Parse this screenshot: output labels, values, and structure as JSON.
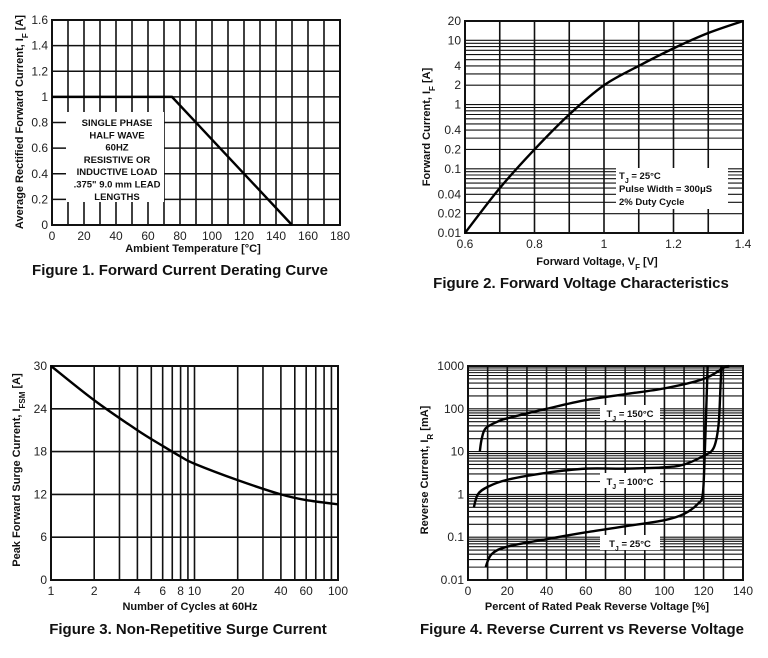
{
  "chart_data": [
    {
      "type": "line",
      "title": "Figure 1. Forward Current Derating Curve",
      "xlabel": [
        "Ambient Temperature [°C]"
      ],
      "ylabel": [
        "Average Rectified Forward Current, I",
        "F",
        " [A]"
      ],
      "xlim": [
        0,
        180
      ],
      "ylim": [
        0,
        1.6
      ],
      "xscale": "linear",
      "yscale": "linear",
      "xticks": [
        0,
        20,
        40,
        60,
        80,
        100,
        120,
        140,
        160,
        180
      ],
      "yticks": [
        0,
        0.2,
        0.4,
        0.6,
        0.8,
        1,
        1.2,
        1.4,
        1.6
      ],
      "grid": true,
      "series": [
        {
          "x": [
            0,
            75,
            150
          ],
          "y": [
            1,
            1,
            0
          ]
        }
      ],
      "annotation": [
        "SINGLE PHASE",
        "HALF WAVE",
        "60HZ",
        "RESISTIVE OR",
        "INDUCTIVE LOAD",
        ".375\" 9.0 mm LEAD",
        "LENGTHS"
      ]
    },
    {
      "type": "line",
      "title": "Figure 2. Forward Voltage Characteristics",
      "xlabel": [
        "Forward Voltage, V",
        "F",
        " [V]"
      ],
      "ylabel": [
        "Forward Current, I",
        "F",
        " [A]"
      ],
      "xlim": [
        0.6,
        1.4
      ],
      "ylim": [
        0.01,
        20
      ],
      "xscale": "linear",
      "yscale": "log",
      "xticks": [
        0.6,
        0.8,
        1,
        1.2,
        1.4
      ],
      "yticks": [
        0.01,
        0.02,
        0.04,
        0.1,
        0.2,
        0.4,
        1,
        2,
        4,
        10,
        20
      ],
      "grid": true,
      "series": [
        {
          "x": [
            0.6,
            0.7,
            0.8,
            0.9,
            1.0,
            1.1,
            1.2,
            1.3,
            1.4
          ],
          "y": [
            0.01,
            0.05,
            0.2,
            0.7,
            2,
            4,
            7.5,
            13,
            20
          ]
        }
      ],
      "annotation": [
        [
          "T",
          "J",
          " = 25°C"
        ],
        [
          "Pulse Width = 300μS"
        ],
        [
          "2% Duty Cycle"
        ]
      ]
    },
    {
      "type": "line",
      "title": "Figure 3. Non-Repetitive Surge Current",
      "xlabel": [
        "Number of Cycles at 60Hz"
      ],
      "ylabel": [
        "Peak Forward Surge Current, I",
        "FSM",
        " [A]"
      ],
      "xlim": [
        1,
        100
      ],
      "ylim": [
        0,
        30
      ],
      "xscale": "log",
      "yscale": "linear",
      "xticks": [
        1,
        2,
        4,
        6,
        8,
        10,
        20,
        40,
        60,
        100
      ],
      "yticks": [
        0,
        6,
        12,
        18,
        24,
        30
      ],
      "grid": true,
      "series": [
        {
          "x": [
            1,
            2,
            4,
            6,
            8,
            10,
            20,
            40,
            60,
            100
          ],
          "y": [
            30,
            25.2,
            21,
            18.8,
            17.3,
            16.3,
            14,
            12,
            11.2,
            10.6
          ]
        }
      ]
    },
    {
      "type": "line",
      "title": "Figure 4. Reverse Current vs Reverse Voltage",
      "xlabel": [
        "Percent of Rated Peak Reverse Voltage [%]"
      ],
      "ylabel": [
        "Reverse Current, I",
        "R",
        " [mA]"
      ],
      "xlim": [
        0,
        140
      ],
      "ylim": [
        0.01,
        1000
      ],
      "xscale": "linear",
      "yscale": "log",
      "xticks": [
        0,
        20,
        40,
        60,
        80,
        100,
        120,
        140
      ],
      "yticks": [
        0.01,
        0.1,
        1,
        10,
        100,
        1000
      ],
      "grid": true,
      "series": [
        {
          "name": [
            "T",
            "J",
            " = 150°C"
          ],
          "x": [
            6,
            7,
            9,
            15,
            20,
            40,
            60,
            80,
            100,
            120,
            130,
            133
          ],
          "y": [
            10,
            20,
            35,
            50,
            60,
            100,
            160,
            220,
            300,
            500,
            900,
            1000
          ]
        },
        {
          "name": [
            "T",
            "J",
            " = 100°C"
          ],
          "x": [
            3,
            5,
            10,
            20,
            40,
            60,
            80,
            100,
            110,
            120,
            125,
            127.5,
            128.5,
            129
          ],
          "y": [
            0.5,
            1,
            1.5,
            2.2,
            3.2,
            4,
            4,
            4.3,
            5,
            8,
            12,
            40,
            300,
            1000
          ]
        },
        {
          "name": [
            "T",
            "J",
            " = 25°C"
          ],
          "x": [
            9,
            12,
            20,
            40,
            60,
            80,
            100,
            110,
            117,
            119.5,
            120.5,
            121.3,
            122
          ],
          "y": [
            0.02,
            0.04,
            0.06,
            0.09,
            0.13,
            0.18,
            0.25,
            0.35,
            0.6,
            1,
            8,
            100,
            1000
          ]
        }
      ]
    }
  ]
}
